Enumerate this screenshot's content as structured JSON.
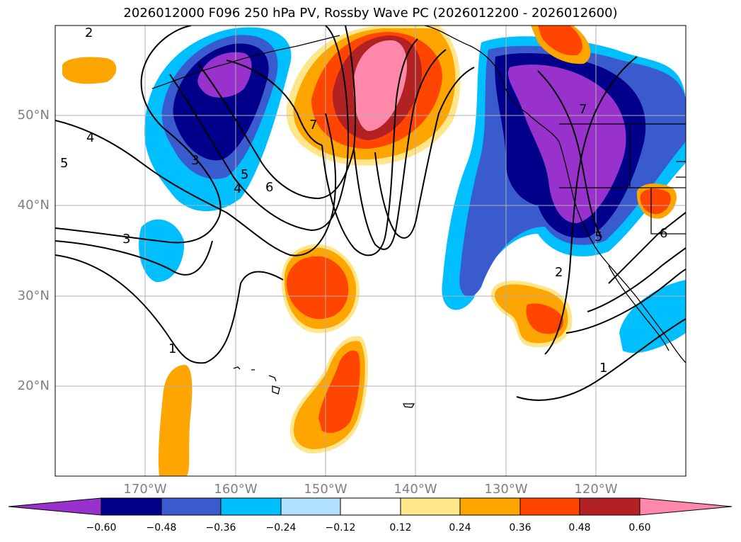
{
  "title": "2026012000 F096 250 hPa PV, Rossby Wave PC (2026012200 - 2026012600)",
  "lat_labels": [
    "50°N",
    "40°N",
    "30°N",
    "20°N"
  ],
  "lon_labels": [
    "170°W",
    "160°W",
    "150°W",
    "140°W",
    "130°W",
    "120°W"
  ],
  "contour_labels": [
    "2",
    "4",
    "5",
    "3",
    "5",
    "4",
    "6",
    "7",
    "3",
    "1",
    "2",
    "1",
    "7",
    "5",
    "6"
  ],
  "colorbar": {
    "ticks": [
      "−0.60",
      "−0.48",
      "−0.36",
      "−0.24",
      "−0.12",
      "0.12",
      "0.24",
      "0.36",
      "0.48",
      "0.60"
    ],
    "colors": [
      "#9932cc",
      "#00008b",
      "#3a5bcd",
      "#00bfff",
      "#b0e2ff",
      "#ffffff",
      "#ffe68a",
      "#ffa500",
      "#ff4500",
      "#b22222",
      "#ff88aa"
    ]
  },
  "chart_data": {
    "type": "heatmap",
    "title": "2026012000 F096 250 hPa PV, Rossby Wave PC (2026012200 - 2026012600)",
    "lat_range": [
      10,
      60
    ],
    "lon_range": [
      -180,
      -110
    ],
    "grid": true,
    "levels": [
      -0.6,
      -0.48,
      -0.36,
      -0.24,
      -0.12,
      0.12,
      0.24,
      0.36,
      0.48,
      0.6
    ],
    "pv_contour_levels": [
      1,
      2,
      3,
      4,
      5,
      6,
      7
    ]
  }
}
